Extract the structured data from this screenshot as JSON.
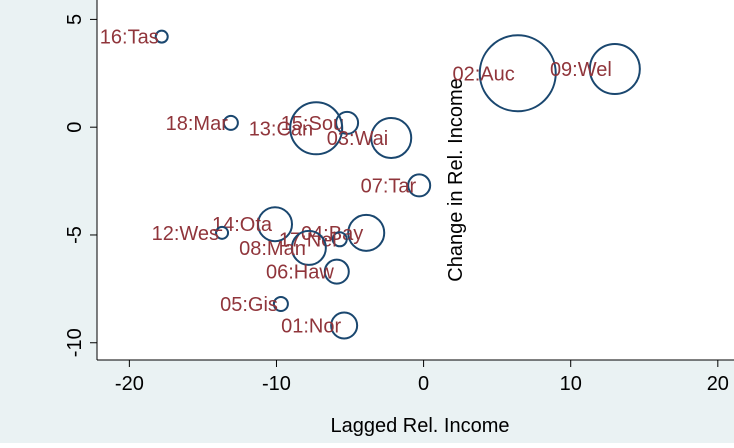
{
  "chart_data": {
    "type": "scatter",
    "x_label": "Lagged Rel. Income",
    "y_label": "Change in Rel. Income",
    "labels": [
      "16:Tas",
      "02:Auc",
      "09:Wel",
      "18:Mar",
      "15:Sou",
      "13:Can",
      "03:Wai",
      "07:Tar",
      "14:Ota",
      "12:Wes",
      "04:Bay",
      "17:Nel",
      "08:Man",
      "06:Haw",
      "05:Gis",
      "01:Nor"
    ],
    "x": [
      -17.8,
      6.4,
      13.0,
      -13.1,
      -5.2,
      -7.3,
      -2.2,
      -0.3,
      -10.1,
      -13.7,
      -3.9,
      -5.7,
      -7.8,
      -5.9,
      -9.7,
      -5.4
    ],
    "values": [
      4.2,
      2.5,
      2.7,
      0.2,
      0.2,
      -0.05,
      -0.5,
      -2.7,
      -4.5,
      -4.9,
      -4.9,
      -5.2,
      -5.6,
      -6.7,
      -8.2,
      -9.2
    ],
    "sizes": [
      36,
      1444,
      625,
      49,
      121,
      676,
      400,
      121,
      289,
      36,
      324,
      49,
      289,
      144,
      49,
      169
    ],
    "color": "#1a476f",
    "label_color": "#90353b",
    "xlim": [
      -22.2,
      21.1
    ],
    "ylim": [
      -10.8,
      5.9
    ],
    "xticks": [
      -20,
      -10,
      0,
      10,
      20
    ],
    "yticks": [
      -10,
      -5,
      0,
      5
    ]
  }
}
